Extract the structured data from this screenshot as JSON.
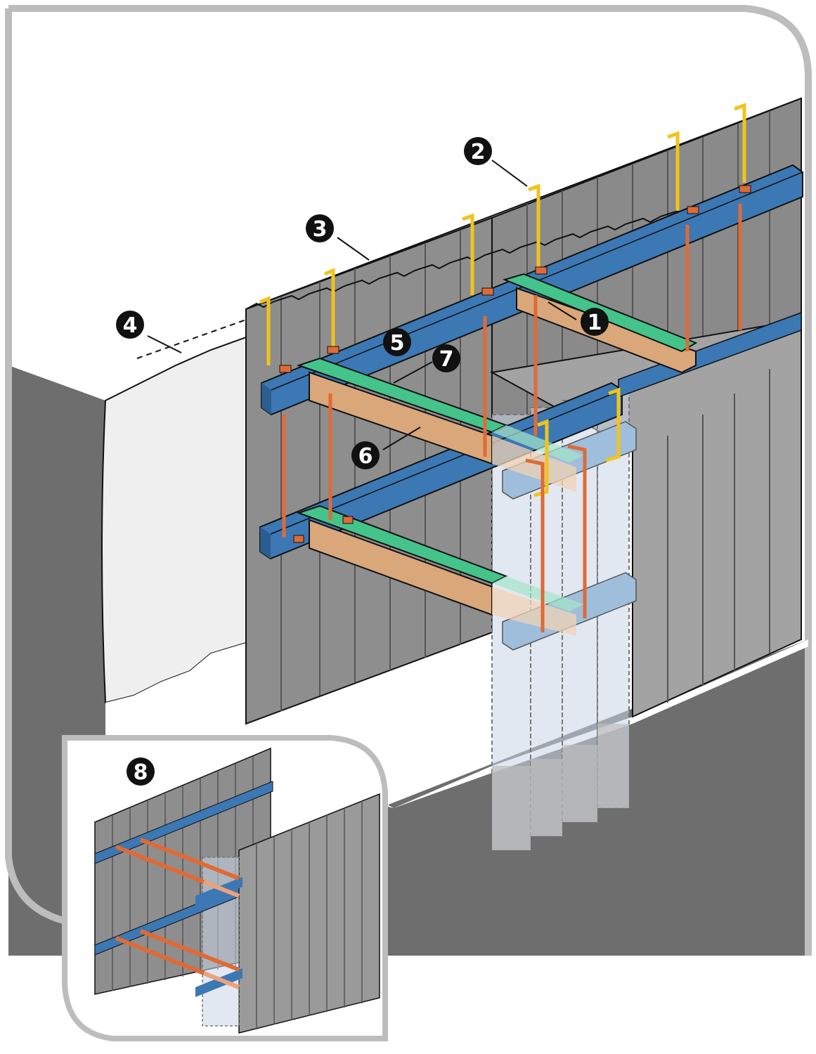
{
  "colors": {
    "frame": "#bdbdbd",
    "ground_dark": "#6e6e6e",
    "excavation_face": "#efefef",
    "sheet_pile": "#8e8e8e",
    "sheet_pile_light": "#a9a9a9",
    "waler": "#3c78b4",
    "strut": "#d9a77a",
    "strut_cap": "#44c48a",
    "hanger": "#f2c31b",
    "tie_rod": "#e06a35",
    "callout": "#111111"
  },
  "callouts": [
    "1",
    "2",
    "3",
    "4",
    "5",
    "6",
    "7",
    "8"
  ],
  "icons": {
    "main_view": "sheet-pile-shoring-diagram",
    "inset_view": "sheet-pile-shoring-inset"
  }
}
